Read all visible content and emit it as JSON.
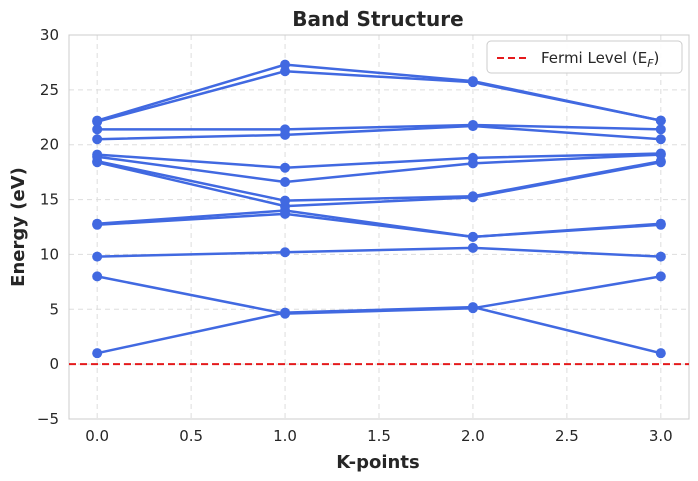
{
  "chart_data": {
    "type": "line",
    "title": "Band Structure",
    "xlabel": "K-points",
    "ylabel": "Energy (eV)",
    "x": [
      0,
      1,
      2,
      3
    ],
    "xlim": [
      -0.15,
      3.15
    ],
    "ylim": [
      -5,
      30
    ],
    "xticks": [
      "0.0",
      "0.5",
      "1.0",
      "1.5",
      "2.0",
      "2.5",
      "3.0"
    ],
    "yticks": [
      "−5",
      "0",
      "5",
      "10",
      "15",
      "20",
      "25",
      "30"
    ],
    "grid": true,
    "legend": {
      "placement": "top-right",
      "entries": [
        {
          "label": "Fermi Level (E",
          "subscript": "F",
          "suffix": ")",
          "style": "dashed",
          "color": "#e41a1c"
        }
      ]
    },
    "fermi_level": 0,
    "series": [
      {
        "values": [
          1.0,
          4.7,
          5.2,
          1.0
        ]
      },
      {
        "values": [
          8.0,
          4.6,
          5.1,
          8.0
        ]
      },
      {
        "values": [
          9.8,
          10.2,
          10.6,
          9.8
        ]
      },
      {
        "values": [
          12.7,
          13.7,
          11.6,
          12.7
        ]
      },
      {
        "values": [
          12.8,
          14.0,
          11.6,
          12.8
        ]
      },
      {
        "values": [
          18.4,
          14.4,
          15.2,
          18.4
        ]
      },
      {
        "values": [
          18.5,
          14.9,
          15.3,
          18.5
        ]
      },
      {
        "values": [
          18.9,
          16.6,
          18.3,
          19.1
        ]
      },
      {
        "values": [
          19.1,
          17.9,
          18.8,
          19.2
        ]
      },
      {
        "values": [
          20.5,
          20.9,
          21.7,
          20.5
        ]
      },
      {
        "values": [
          21.4,
          21.4,
          21.8,
          21.4
        ]
      },
      {
        "values": [
          22.1,
          26.7,
          25.7,
          22.2
        ]
      },
      {
        "values": [
          22.2,
          27.3,
          25.8,
          22.2
        ]
      }
    ],
    "colors": {
      "band": "#4169e1",
      "fermi": "#e41a1c",
      "grid": "#dddddd",
      "axes": "#cccccc"
    }
  }
}
